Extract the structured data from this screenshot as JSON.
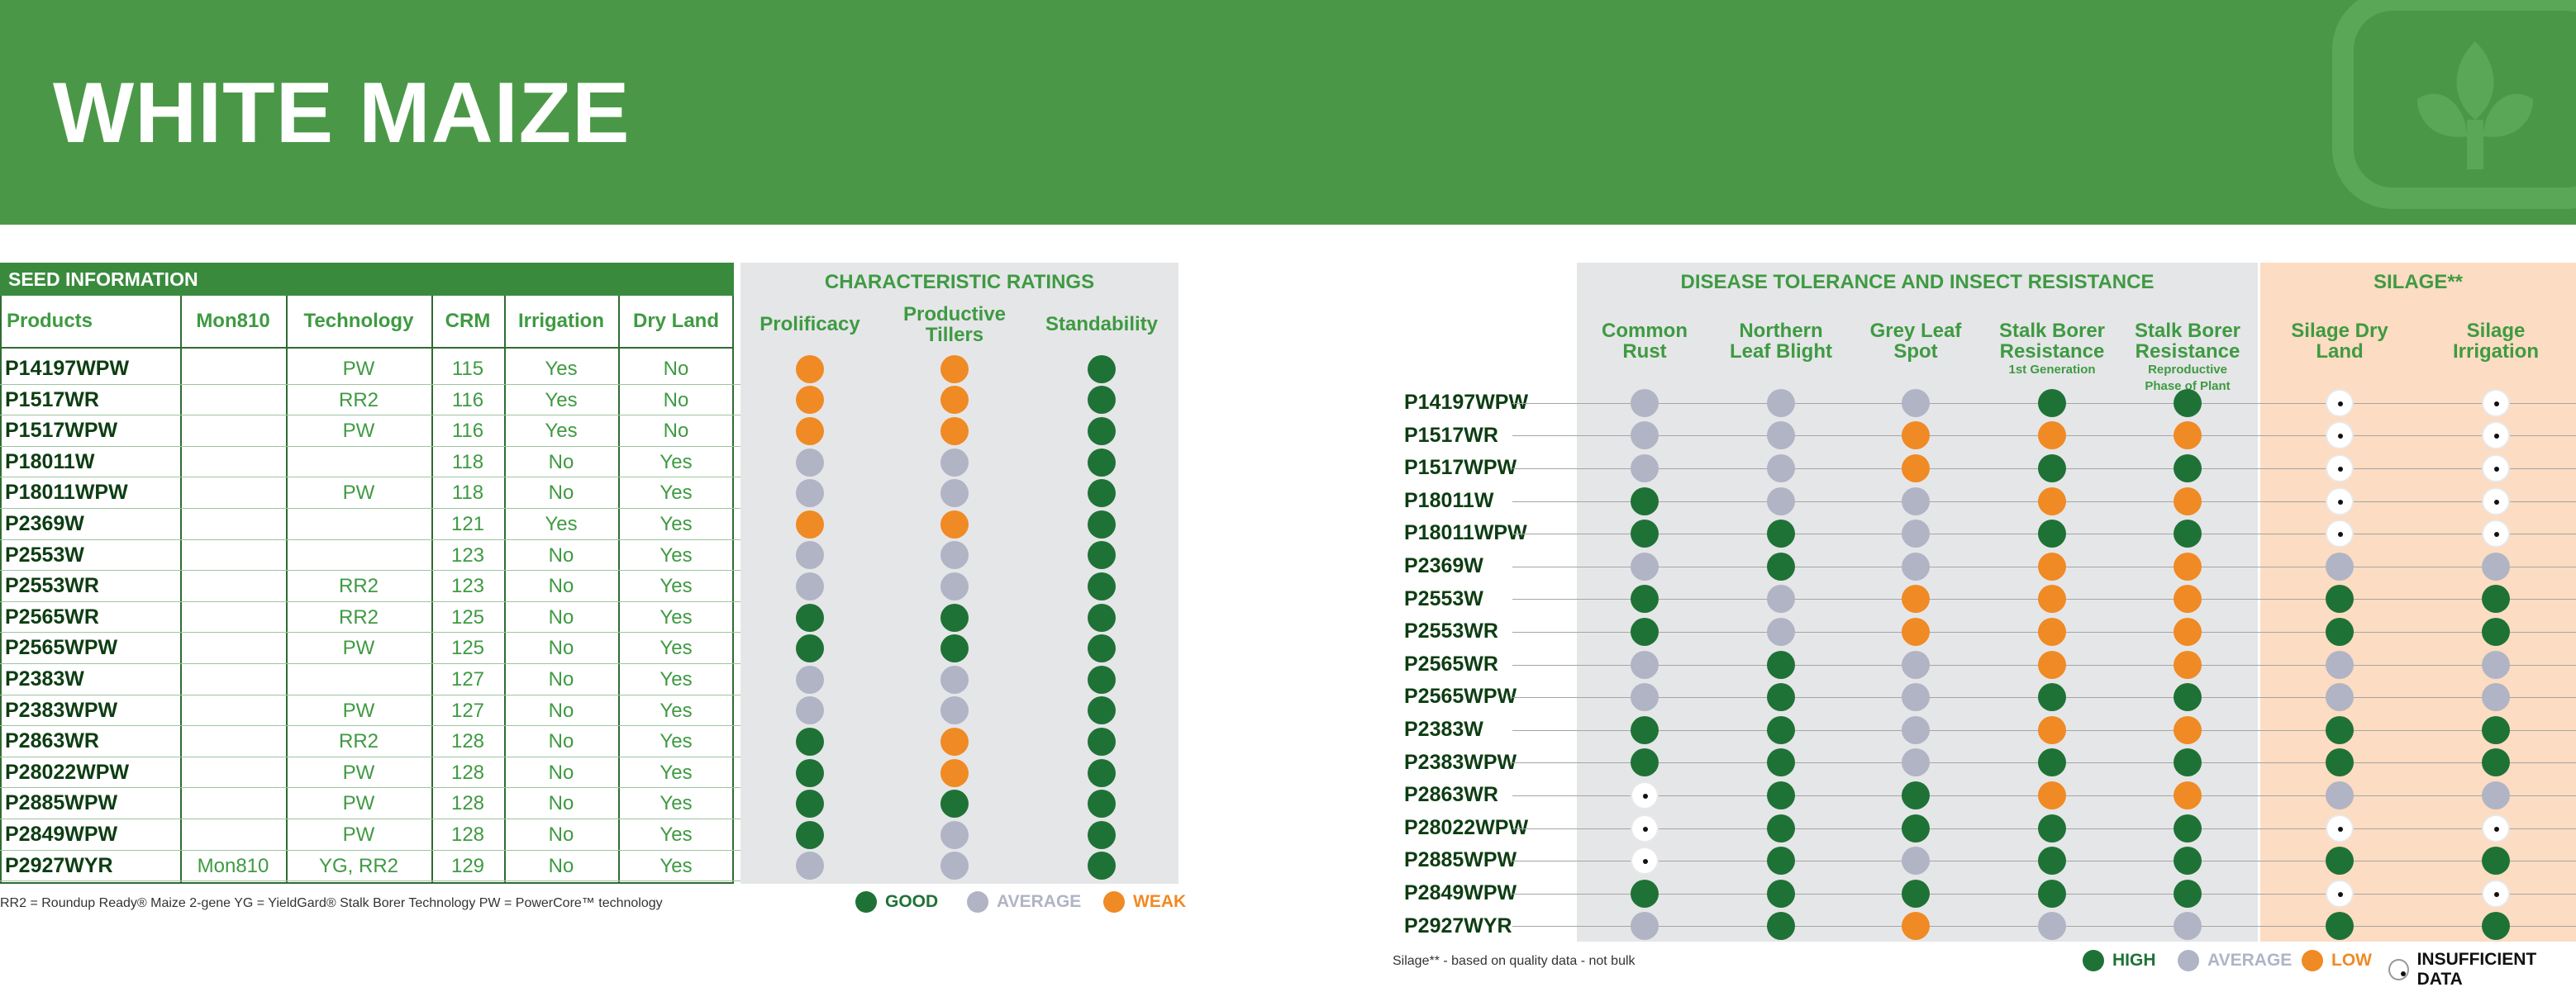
{
  "page": {
    "title": "WHITE MAIZE"
  },
  "colors": {
    "green": "#4a9847",
    "dark_green": "#1f7236",
    "grey": "#b0b4c5",
    "orange": "#f08a24",
    "silage_bg": "#fcdcc2"
  },
  "left_table": {
    "header": "SEED INFORMATION",
    "columns": [
      "Products",
      "Mon810",
      "Technology",
      "CRM",
      "Irrigation",
      "Dry Land"
    ],
    "rows": [
      {
        "product": "P14197WPW",
        "mon810": "",
        "technology": "PW",
        "crm": "115",
        "irrigation": "Yes",
        "dryland": "No"
      },
      {
        "product": "P1517WR",
        "mon810": "",
        "technology": "RR2",
        "crm": "116",
        "irrigation": "Yes",
        "dryland": "No"
      },
      {
        "product": "P1517WPW",
        "mon810": "",
        "technology": "PW",
        "crm": "116",
        "irrigation": "Yes",
        "dryland": "No"
      },
      {
        "product": "P18011W",
        "mon810": "",
        "technology": "",
        "crm": "118",
        "irrigation": "No",
        "dryland": "Yes"
      },
      {
        "product": "P18011WPW",
        "mon810": "",
        "technology": "PW",
        "crm": "118",
        "irrigation": "No",
        "dryland": "Yes"
      },
      {
        "product": "P2369W",
        "mon810": "",
        "technology": "",
        "crm": "121",
        "irrigation": "Yes",
        "dryland": "Yes"
      },
      {
        "product": "P2553W",
        "mon810": "",
        "technology": "",
        "crm": "123",
        "irrigation": "No",
        "dryland": "Yes"
      },
      {
        "product": "P2553WR",
        "mon810": "",
        "technology": "RR2",
        "crm": "123",
        "irrigation": "No",
        "dryland": "Yes"
      },
      {
        "product": "P2565WR",
        "mon810": "",
        "technology": "RR2",
        "crm": "125",
        "irrigation": "No",
        "dryland": "Yes"
      },
      {
        "product": "P2565WPW",
        "mon810": "",
        "technology": "PW",
        "crm": "125",
        "irrigation": "No",
        "dryland": "Yes"
      },
      {
        "product": "P2383W",
        "mon810": "",
        "technology": "",
        "crm": "127",
        "irrigation": "No",
        "dryland": "Yes"
      },
      {
        "product": "P2383WPW",
        "mon810": "",
        "technology": "PW",
        "crm": "127",
        "irrigation": "No",
        "dryland": "Yes"
      },
      {
        "product": "P2863WR",
        "mon810": "",
        "technology": "RR2",
        "crm": "128",
        "irrigation": "No",
        "dryland": "Yes"
      },
      {
        "product": "P28022WPW",
        "mon810": "",
        "technology": "PW",
        "crm": "128",
        "irrigation": "No",
        "dryland": "Yes"
      },
      {
        "product": "P2885WPW",
        "mon810": "",
        "technology": "PW",
        "crm": "128",
        "irrigation": "No",
        "dryland": "Yes"
      },
      {
        "product": "P2849WPW",
        "mon810": "",
        "technology": "PW",
        "crm": "128",
        "irrigation": "No",
        "dryland": "Yes"
      },
      {
        "product": "P2927WYR",
        "mon810": "Mon810",
        "technology": "YG, RR2",
        "crm": "129",
        "irrigation": "No",
        "dryland": "Yes"
      }
    ]
  },
  "char_ratings": {
    "title": "CHARACTERISTIC RATINGS",
    "columns": [
      "Prolificacy",
      "Productive Tillers",
      "Standability"
    ],
    "rows": [
      [
        "weak",
        "weak",
        "good"
      ],
      [
        "weak",
        "weak",
        "good"
      ],
      [
        "weak",
        "weak",
        "good"
      ],
      [
        "avg",
        "avg",
        "good"
      ],
      [
        "avg",
        "avg",
        "good"
      ],
      [
        "weak",
        "weak",
        "good"
      ],
      [
        "avg",
        "avg",
        "good"
      ],
      [
        "avg",
        "avg",
        "good"
      ],
      [
        "good",
        "good",
        "good"
      ],
      [
        "good",
        "good",
        "good"
      ],
      [
        "avg",
        "avg",
        "good"
      ],
      [
        "avg",
        "avg",
        "good"
      ],
      [
        "good",
        "weak",
        "good"
      ],
      [
        "good",
        "weak",
        "good"
      ],
      [
        "good",
        "good",
        "good"
      ],
      [
        "good",
        "avg",
        "good"
      ],
      [
        "avg",
        "avg",
        "good"
      ]
    ]
  },
  "left_footnote": "RR2 = Roundup Ready® Maize 2-gene YG = YieldGard® Stalk Borer Technology PW = PowerCore™ technology",
  "left_legend": [
    {
      "label": "GOOD",
      "type": "good",
      "color": "#1f7236"
    },
    {
      "label": "AVERAGE",
      "type": "avg",
      "color": "#b0b4c5"
    },
    {
      "label": "WEAK",
      "type": "weak",
      "color": "#f08a24"
    }
  ],
  "disease": {
    "title": "DISEASE TOLERANCE AND INSECT RESISTANCE",
    "columns": [
      {
        "line1": "Common",
        "line2": "Rust",
        "sub1": "",
        "sub2": ""
      },
      {
        "line1": "Northern",
        "line2": "Leaf Blight",
        "sub1": "",
        "sub2": ""
      },
      {
        "line1": "Grey Leaf",
        "line2": "Spot",
        "sub1": "",
        "sub2": ""
      },
      {
        "line1": "Stalk Borer",
        "line2": "Resistance",
        "sub1": "1st Generation",
        "sub2": ""
      },
      {
        "line1": "Stalk Borer",
        "line2": "Resistance",
        "sub1": "Reproductive",
        "sub2": "Phase of Plant"
      }
    ]
  },
  "silage": {
    "title": "SILAGE**",
    "columns": [
      {
        "line1": "Silage Dry",
        "line2": "Land"
      },
      {
        "line1": "Silage",
        "line2": "Irrigation"
      }
    ]
  },
  "right_rows": [
    {
      "product": "P14197WPW",
      "ratings": [
        "avg",
        "avg",
        "avg",
        "high",
        "high",
        "ins",
        "ins"
      ]
    },
    {
      "product": "P1517WR",
      "ratings": [
        "avg",
        "avg",
        "low",
        "low",
        "low",
        "ins",
        "ins"
      ]
    },
    {
      "product": "P1517WPW",
      "ratings": [
        "avg",
        "avg",
        "low",
        "high",
        "high",
        "ins",
        "ins"
      ]
    },
    {
      "product": "P18011W",
      "ratings": [
        "high",
        "avg",
        "avg",
        "low",
        "low",
        "ins",
        "ins"
      ]
    },
    {
      "product": "P18011WPW",
      "ratings": [
        "high",
        "high",
        "avg",
        "high",
        "high",
        "ins",
        "ins"
      ]
    },
    {
      "product": "P2369W",
      "ratings": [
        "avg",
        "high",
        "avg",
        "low",
        "low",
        "avg",
        "avg"
      ]
    },
    {
      "product": "P2553W",
      "ratings": [
        "high",
        "avg",
        "low",
        "low",
        "low",
        "high",
        "high"
      ]
    },
    {
      "product": "P2553WR",
      "ratings": [
        "high",
        "avg",
        "low",
        "low",
        "low",
        "high",
        "high"
      ]
    },
    {
      "product": "P2565WR",
      "ratings": [
        "avg",
        "high",
        "avg",
        "low",
        "low",
        "avg",
        "avg"
      ]
    },
    {
      "product": "P2565WPW",
      "ratings": [
        "avg",
        "high",
        "avg",
        "high",
        "high",
        "avg",
        "avg"
      ]
    },
    {
      "product": "P2383W",
      "ratings": [
        "high",
        "high",
        "avg",
        "low",
        "low",
        "high",
        "high"
      ]
    },
    {
      "product": "P2383WPW",
      "ratings": [
        "high",
        "high",
        "avg",
        "high",
        "high",
        "high",
        "high"
      ]
    },
    {
      "product": "P2863WR",
      "ratings": [
        "ins",
        "high",
        "high",
        "low",
        "low",
        "avg",
        "avg"
      ]
    },
    {
      "product": "P28022WPW",
      "ratings": [
        "ins",
        "high",
        "high",
        "high",
        "high",
        "ins",
        "ins"
      ]
    },
    {
      "product": "P2885WPW",
      "ratings": [
        "ins",
        "high",
        "avg",
        "high",
        "high",
        "high",
        "high"
      ]
    },
    {
      "product": "P2849WPW",
      "ratings": [
        "high",
        "high",
        "high",
        "high",
        "high",
        "ins",
        "ins"
      ]
    },
    {
      "product": "P2927WYR",
      "ratings": [
        "avg",
        "high",
        "low",
        "avg",
        "avg",
        "high",
        "high"
      ]
    }
  ],
  "right_footnote": "Silage** - based on quality data - not bulk",
  "right_legend": [
    {
      "label": "HIGH",
      "type": "high",
      "color": "#1f7236"
    },
    {
      "label": "AVERAGE",
      "type": "avg",
      "color": "#b0b4c5"
    },
    {
      "label": "LOW",
      "type": "low",
      "color": "#f08a24"
    },
    {
      "label": "INSUFFICIENT DATA",
      "type": "ins",
      "color": "#ffffff"
    }
  ]
}
